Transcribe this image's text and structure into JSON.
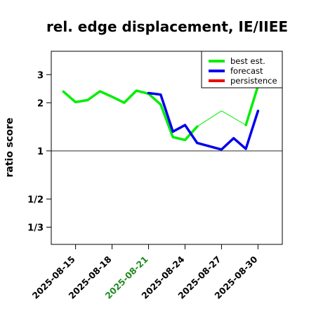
{
  "chart_data": {
    "type": "line",
    "title": "rel. edge displacement, IE/IIEE",
    "ylabel": "ratio score",
    "xlabel": "",
    "y_scale": "log",
    "ylim": [
      0.26,
      4.2
    ],
    "xlim": [
      "2025-08-13",
      "2025-09-01"
    ],
    "yticks": [
      {
        "value": 0.3333,
        "label": "1/3"
      },
      {
        "value": 0.5,
        "label": "1/2"
      },
      {
        "value": 1,
        "label": "1"
      },
      {
        "value": 2,
        "label": "2"
      },
      {
        "value": 3,
        "label": "3"
      }
    ],
    "xticks": [
      {
        "date": "2025-08-15",
        "label": "2025-08-15",
        "color": "#000000"
      },
      {
        "date": "2025-08-18",
        "label": "2025-08-18",
        "color": "#000000"
      },
      {
        "date": "2025-08-21",
        "label": "2025-08-21",
        "color": "#228b22"
      },
      {
        "date": "2025-08-24",
        "label": "2025-08-24",
        "color": "#000000"
      },
      {
        "date": "2025-08-27",
        "label": "2025-08-27",
        "color": "#000000"
      },
      {
        "date": "2025-08-30",
        "label": "2025-08-30",
        "color": "#000000"
      }
    ],
    "reference_line": 1,
    "legend_position": "top-right",
    "series": [
      {
        "name": "best est.",
        "color": "#00ee00",
        "x": [
          "2025-08-14",
          "2025-08-15",
          "2025-08-16",
          "2025-08-17",
          "2025-08-18",
          "2025-08-19",
          "2025-08-20",
          "2025-08-21",
          "2025-08-22",
          "2025-08-23",
          "2025-08-24",
          "2025-08-25",
          "2025-08-27",
          "2025-08-29",
          "2025-08-30"
        ],
        "y": [
          2.35,
          2.02,
          2.08,
          2.36,
          2.18,
          2.0,
          2.38,
          2.28,
          1.95,
          1.22,
          1.17,
          1.42,
          1.78,
          1.45,
          2.55
        ],
        "thin_segments_after_index": [
          11,
          12
        ]
      },
      {
        "name": "forecast",
        "color": "#0000ee",
        "x": [
          "2025-08-21",
          "2025-08-22",
          "2025-08-23",
          "2025-08-24",
          "2025-08-25",
          "2025-08-27",
          "2025-08-28",
          "2025-08-29",
          "2025-08-30"
        ],
        "y": [
          2.3,
          2.25,
          1.32,
          1.45,
          1.12,
          1.02,
          1.2,
          1.03,
          1.78
        ]
      },
      {
        "name": "persistence",
        "color": "#ee0000",
        "x": [],
        "y": []
      }
    ]
  }
}
